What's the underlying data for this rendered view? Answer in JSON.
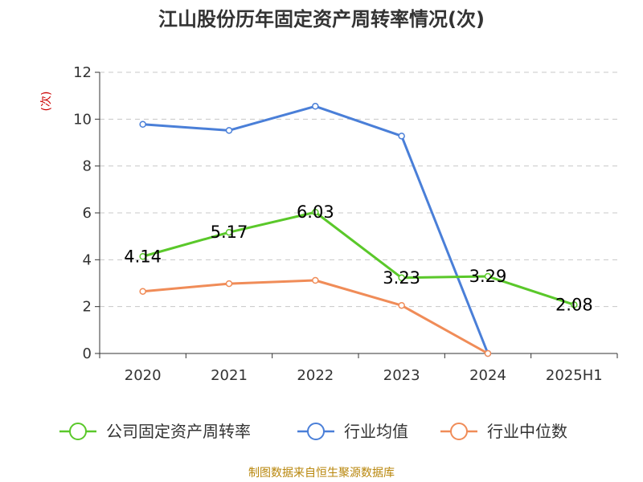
{
  "title": "江山股份历年固定资产周转率情况(次)",
  "source": "制图数据来自恒生聚源数据库",
  "chart_data": {
    "type": "line",
    "title": "江山股份历年固定资产周转率情况(次)",
    "ylabel": "(次)",
    "xlabel": "",
    "categories": [
      "2020",
      "2021",
      "2022",
      "2023",
      "2024",
      "2025H1"
    ],
    "ylim": [
      0,
      12
    ],
    "yticks": [
      0,
      2,
      4,
      6,
      8,
      10,
      12
    ],
    "grid": true,
    "legend_position": "bottom",
    "series": [
      {
        "name": "公司固定资产周转率",
        "color": "#5ac82a",
        "values": [
          4.14,
          5.17,
          6.03,
          3.23,
          3.29,
          2.08
        ],
        "labels": [
          "4.14",
          "5.17",
          "6.03",
          "3.23",
          "3.29",
          "2.08"
        ]
      },
      {
        "name": "行业均值",
        "color": "#4a7fd8",
        "values": [
          9.78,
          9.52,
          10.55,
          9.28,
          0,
          null
        ]
      },
      {
        "name": "行业中位数",
        "color": "#f08c58",
        "values": [
          2.65,
          2.98,
          3.12,
          2.05,
          0,
          null
        ]
      }
    ]
  }
}
